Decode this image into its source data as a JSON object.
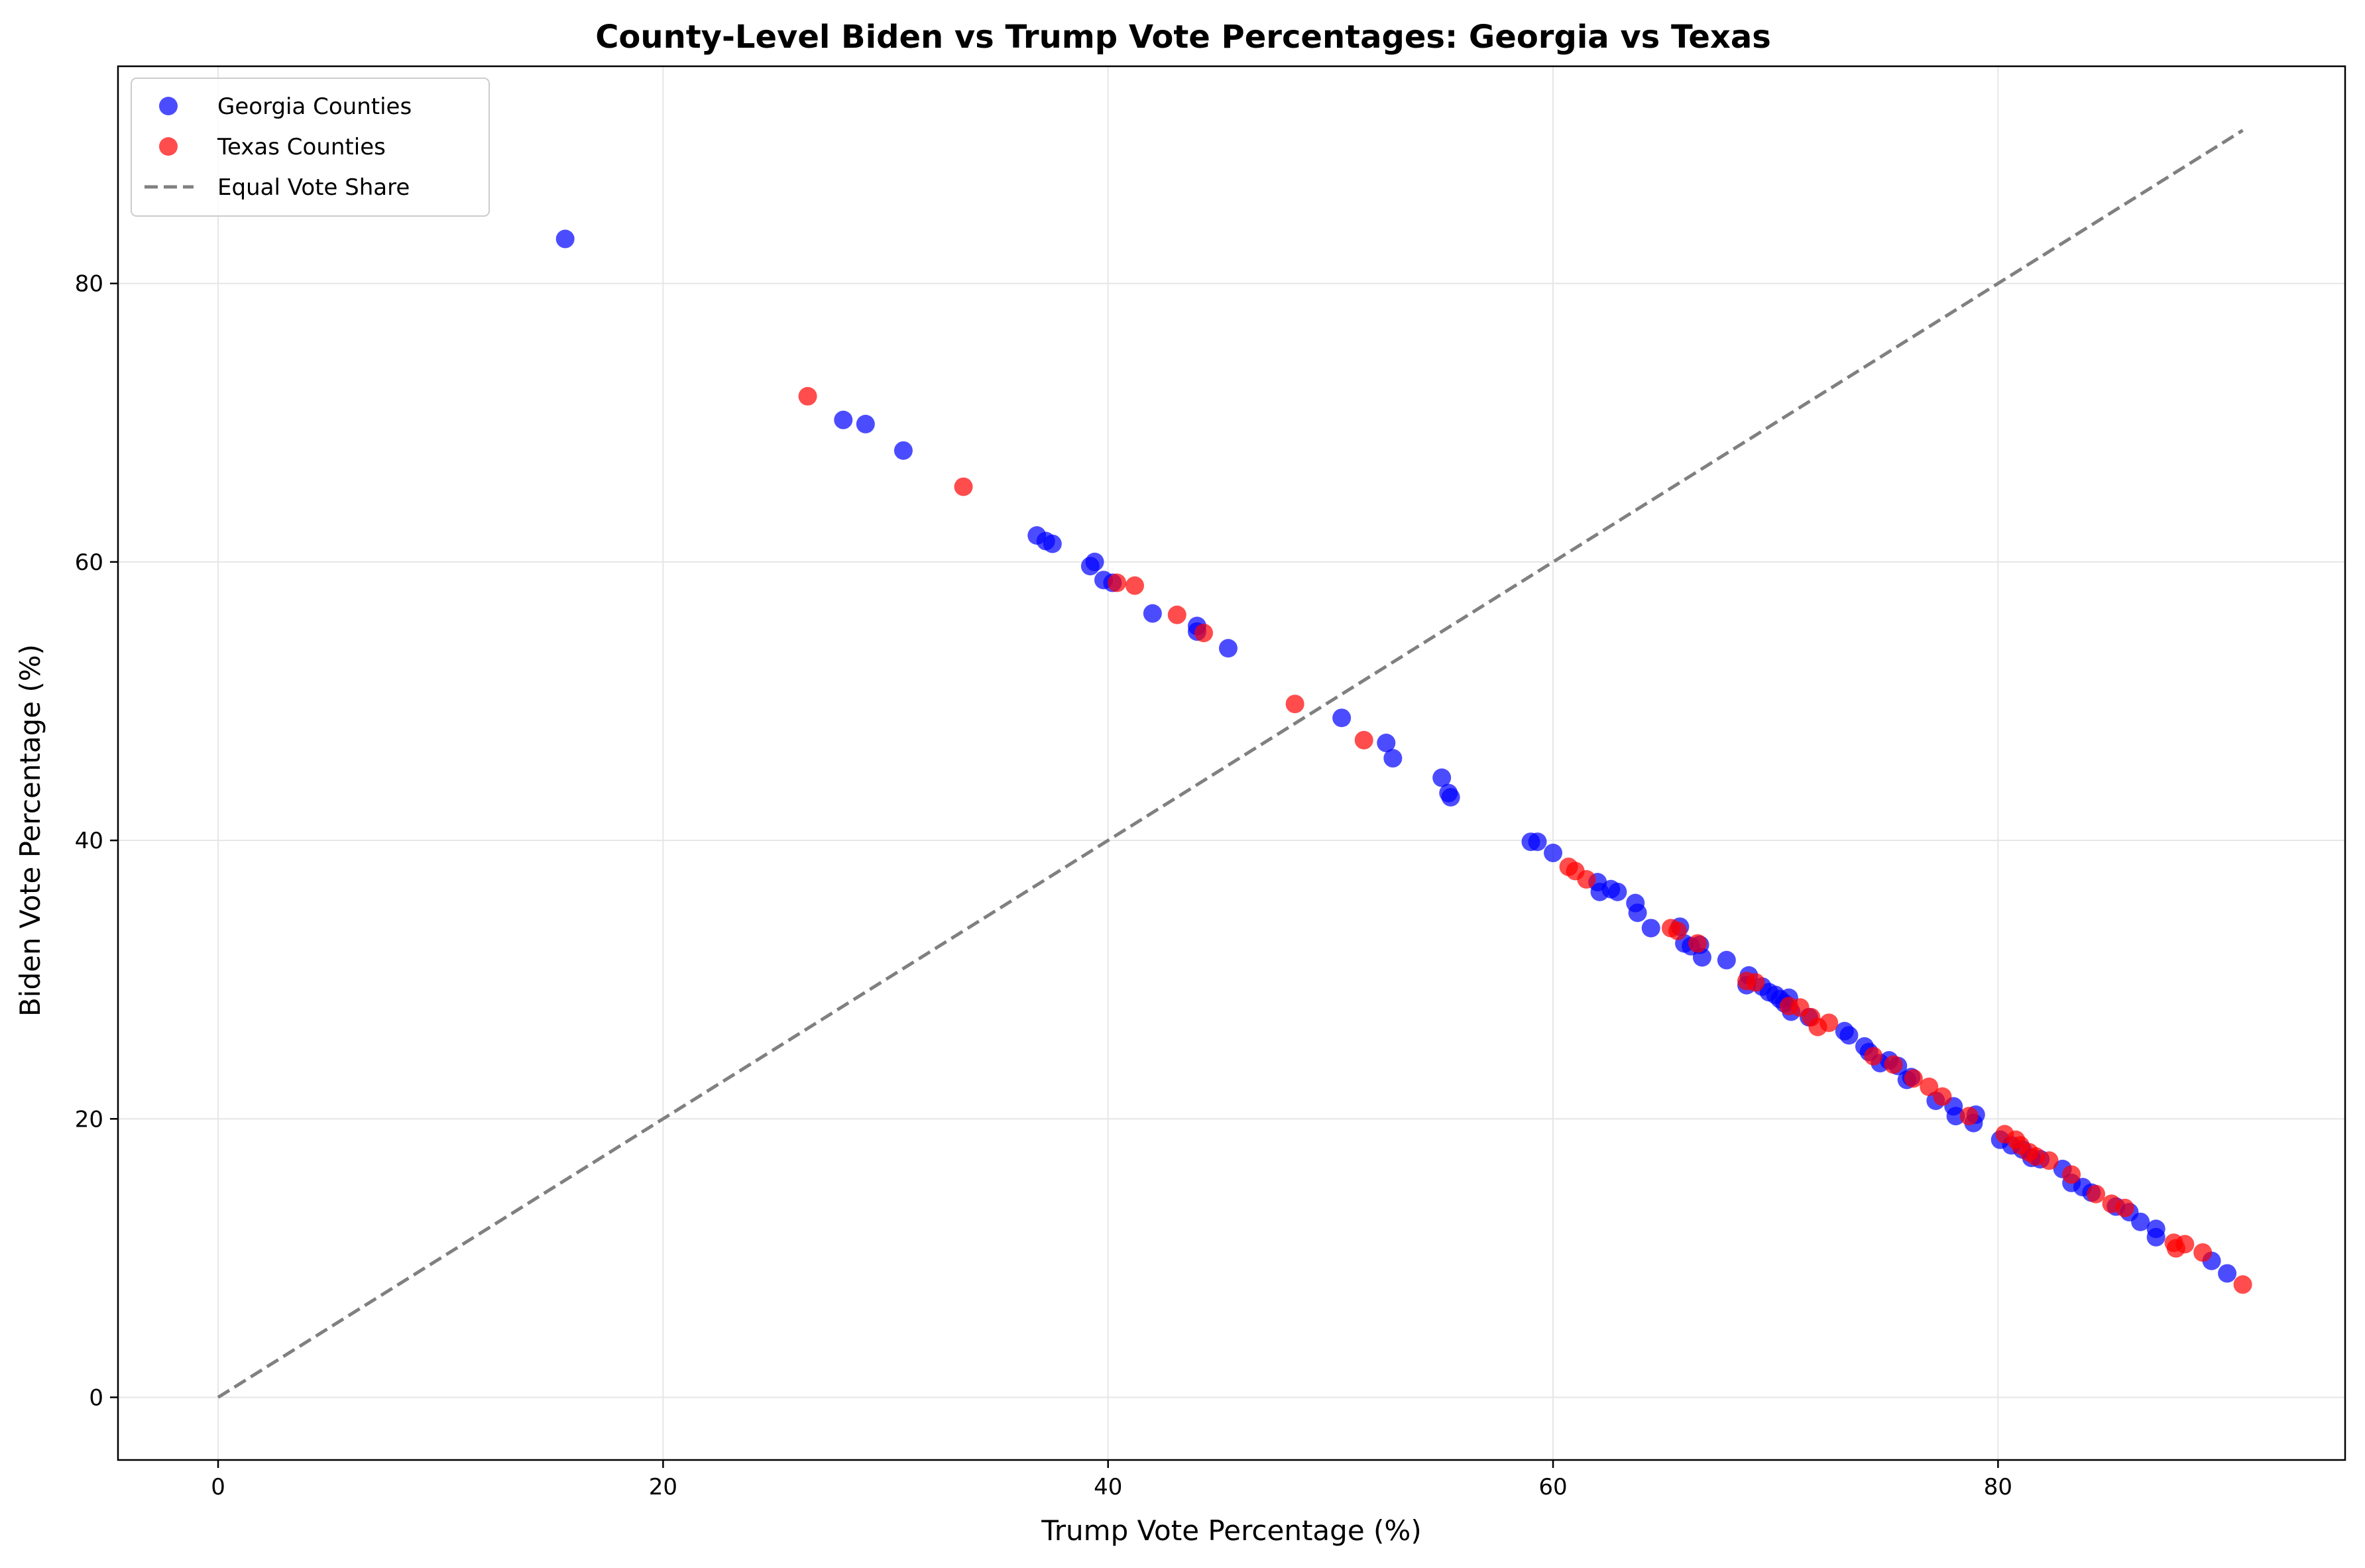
{
  "chart_data": {
    "type": "scatter",
    "title": "County-Level Biden vs Trump Vote Percentages: Georgia vs Texas",
    "xlabel": "Trump Vote Percentage (%)",
    "ylabel": "Biden Vote Percentage (%)",
    "xlim": [
      -4.5,
      95.6
    ],
    "ylim": [
      -4.5,
      95.6
    ],
    "xticks": [
      0,
      20,
      40,
      60,
      80
    ],
    "yticks": [
      0,
      20,
      40,
      60,
      80
    ],
    "grid": true,
    "legend_position": "top-left",
    "series": [
      {
        "name": "Georgia Counties",
        "color": "#0000ff",
        "marker": "circle",
        "points": [
          [
            15.6,
            83.2
          ],
          [
            28.1,
            70.2
          ],
          [
            29.1,
            69.9
          ],
          [
            30.8,
            68.0
          ],
          [
            36.8,
            61.9
          ],
          [
            37.2,
            61.5
          ],
          [
            37.5,
            61.3
          ],
          [
            39.2,
            59.7
          ],
          [
            39.4,
            60.0
          ],
          [
            39.8,
            58.7
          ],
          [
            40.2,
            58.5
          ],
          [
            42.0,
            56.3
          ],
          [
            44.0,
            55.4
          ],
          [
            44.0,
            55.0
          ],
          [
            45.4,
            53.8
          ],
          [
            50.5,
            48.8
          ],
          [
            52.5,
            47.0
          ],
          [
            52.8,
            45.9
          ],
          [
            55.0,
            44.5
          ],
          [
            55.3,
            43.4
          ],
          [
            55.4,
            43.1
          ],
          [
            59.0,
            39.9
          ],
          [
            59.3,
            39.9
          ],
          [
            60.0,
            39.1
          ],
          [
            62.0,
            37.0
          ],
          [
            62.1,
            36.3
          ],
          [
            62.6,
            36.5
          ],
          [
            62.9,
            36.3
          ],
          [
            63.7,
            35.5
          ],
          [
            63.8,
            34.8
          ],
          [
            64.4,
            33.7
          ],
          [
            65.7,
            33.8
          ],
          [
            65.9,
            32.6
          ],
          [
            66.2,
            32.4
          ],
          [
            66.6,
            32.5
          ],
          [
            66.7,
            31.6
          ],
          [
            67.8,
            31.4
          ],
          [
            68.7,
            29.6
          ],
          [
            68.8,
            30.3
          ],
          [
            69.4,
            29.5
          ],
          [
            69.7,
            29.1
          ],
          [
            70.0,
            28.9
          ],
          [
            70.2,
            28.6
          ],
          [
            70.4,
            28.3
          ],
          [
            70.6,
            28.7
          ],
          [
            70.7,
            27.7
          ],
          [
            71.5,
            27.3
          ],
          [
            73.1,
            26.3
          ],
          [
            73.3,
            26.0
          ],
          [
            74.0,
            25.2
          ],
          [
            74.2,
            24.8
          ],
          [
            74.7,
            24.0
          ],
          [
            75.1,
            24.2
          ],
          [
            75.5,
            23.8
          ],
          [
            75.9,
            22.8
          ],
          [
            76.1,
            23.0
          ],
          [
            77.2,
            21.3
          ],
          [
            78.0,
            20.9
          ],
          [
            78.1,
            20.2
          ],
          [
            78.9,
            19.7
          ],
          [
            79.0,
            20.3
          ],
          [
            80.1,
            18.5
          ],
          [
            80.6,
            18.1
          ],
          [
            81.1,
            17.8
          ],
          [
            81.5,
            17.2
          ],
          [
            81.9,
            17.1
          ],
          [
            82.9,
            16.4
          ],
          [
            83.3,
            15.4
          ],
          [
            83.8,
            15.1
          ],
          [
            84.2,
            14.7
          ],
          [
            85.3,
            13.7
          ],
          [
            85.9,
            13.3
          ],
          [
            86.4,
            12.6
          ],
          [
            87.1,
            12.1
          ],
          [
            87.1,
            11.5
          ],
          [
            89.6,
            9.8
          ],
          [
            90.3,
            8.9
          ]
        ]
      },
      {
        "name": "Texas Counties",
        "color": "#ff0000",
        "marker": "circle",
        "points": [
          [
            26.5,
            71.9
          ],
          [
            33.5,
            65.4
          ],
          [
            40.4,
            58.5
          ],
          [
            41.2,
            58.3
          ],
          [
            43.1,
            56.2
          ],
          [
            44.3,
            54.9
          ],
          [
            48.4,
            49.8
          ],
          [
            51.5,
            47.2
          ],
          [
            60.7,
            38.1
          ],
          [
            61.0,
            37.8
          ],
          [
            61.5,
            37.2
          ],
          [
            65.3,
            33.7
          ],
          [
            65.6,
            33.5
          ],
          [
            66.5,
            32.6
          ],
          [
            68.7,
            29.9
          ],
          [
            69.1,
            29.8
          ],
          [
            70.6,
            28.1
          ],
          [
            71.1,
            28.0
          ],
          [
            71.6,
            27.3
          ],
          [
            71.9,
            26.6
          ],
          [
            72.4,
            26.9
          ],
          [
            74.4,
            24.5
          ],
          [
            75.3,
            23.9
          ],
          [
            76.2,
            22.9
          ],
          [
            76.9,
            22.3
          ],
          [
            77.5,
            21.6
          ],
          [
            78.7,
            20.2
          ],
          [
            80.3,
            18.9
          ],
          [
            80.8,
            18.5
          ],
          [
            81.0,
            18.1
          ],
          [
            81.4,
            17.6
          ],
          [
            81.7,
            17.3
          ],
          [
            82.3,
            17.0
          ],
          [
            83.3,
            16.0
          ],
          [
            84.4,
            14.6
          ],
          [
            85.1,
            13.9
          ],
          [
            85.7,
            13.6
          ],
          [
            87.9,
            11.1
          ],
          [
            88.0,
            10.7
          ],
          [
            88.4,
            11.0
          ],
          [
            89.2,
            10.4
          ],
          [
            91.0,
            8.1
          ]
        ]
      }
    ],
    "reference_line": {
      "name": "Equal Vote Share",
      "color": "#808080",
      "style": "dashed",
      "from": [
        0,
        0
      ],
      "to": [
        91,
        91
      ]
    }
  }
}
